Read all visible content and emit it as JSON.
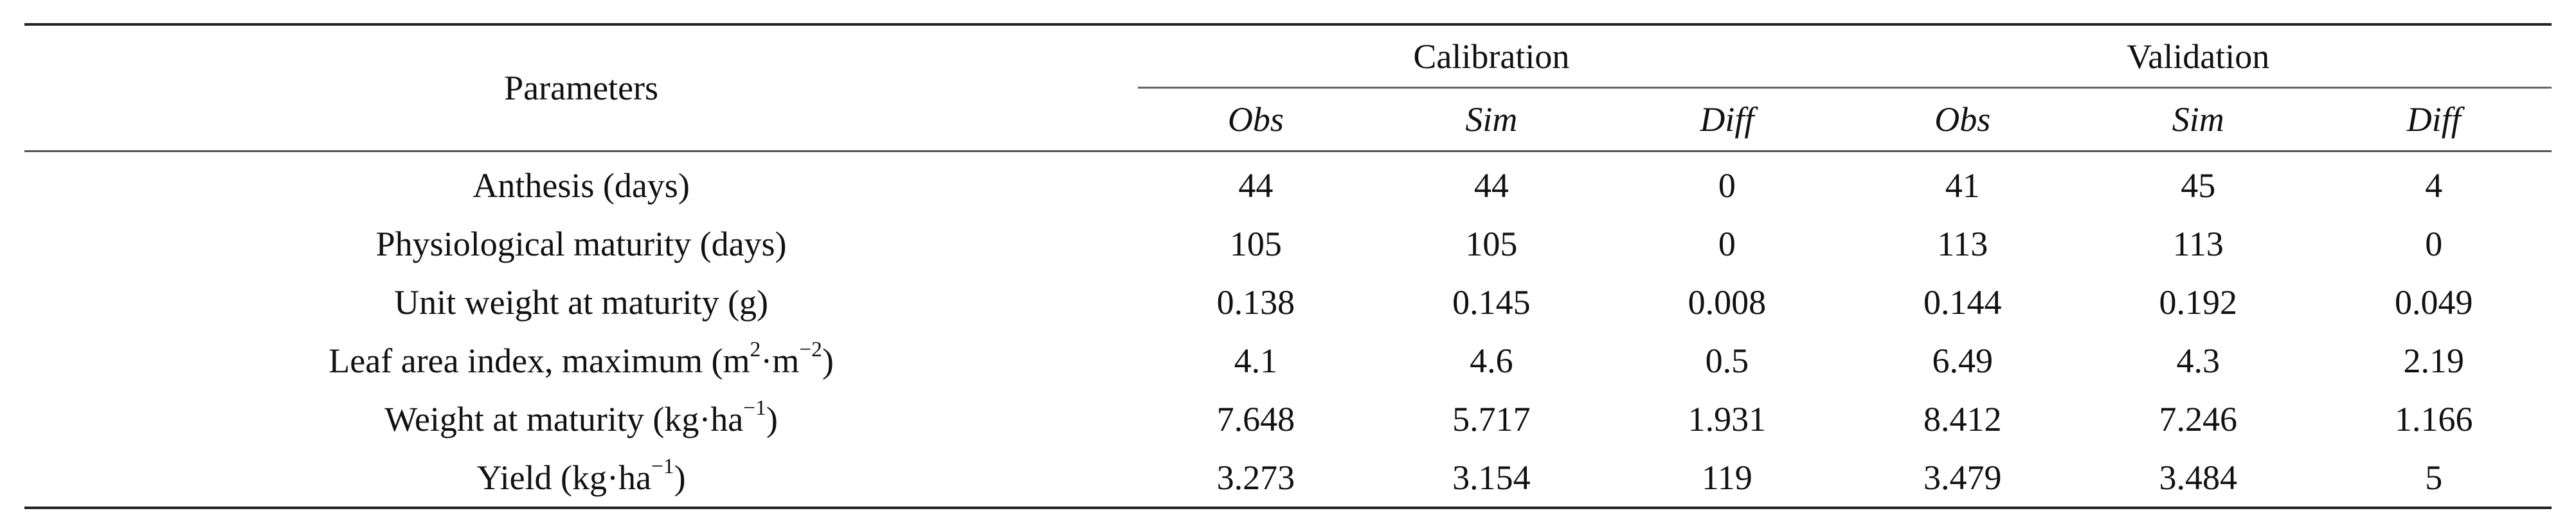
{
  "table": {
    "header": {
      "parameters": "Parameters",
      "groups": [
        "Calibration",
        "Validation"
      ],
      "subheaders": [
        "Obs",
        "Sim",
        "Diff",
        "Obs",
        "Sim",
        "Diff"
      ]
    },
    "rows": [
      {
        "label_main": "Anthesis (days)",
        "label_sup1": "",
        "label_mid": "",
        "label_sup2": "",
        "label_end": "",
        "values": [
          "44",
          "44",
          "0",
          "41",
          "45",
          "4"
        ]
      },
      {
        "label_main": "Physiological maturity (days)",
        "label_sup1": "",
        "label_mid": "",
        "label_sup2": "",
        "label_end": "",
        "values": [
          "105",
          "105",
          "0",
          "113",
          "113",
          "0"
        ]
      },
      {
        "label_main": "Unit weight at maturity (g)",
        "label_sup1": "",
        "label_mid": "",
        "label_sup2": "",
        "label_end": "",
        "values": [
          "0.138",
          "0.145",
          "0.008",
          "0.144",
          "0.192",
          "0.049"
        ]
      },
      {
        "label_main": "Leaf area index, maximum (m",
        "label_sup1": "2",
        "label_mid": "·m",
        "label_sup2": "−2",
        "label_end": ")",
        "values": [
          "4.1",
          "4.6",
          "0.5",
          "6.49",
          "4.3",
          "2.19"
        ]
      },
      {
        "label_main": "Weight at maturity (kg·ha",
        "label_sup1": "−1",
        "label_mid": ")",
        "label_sup2": "",
        "label_end": "",
        "values": [
          "7.648",
          "5.717",
          "1.931",
          "8.412",
          "7.246",
          "1.166"
        ]
      },
      {
        "label_main": "Yield (kg·ha",
        "label_sup1": "−1",
        "label_mid": ")",
        "label_sup2": "",
        "label_end": "",
        "values": [
          "3.273",
          "3.154",
          "119",
          "3.479",
          "3.484",
          "5"
        ]
      }
    ]
  }
}
